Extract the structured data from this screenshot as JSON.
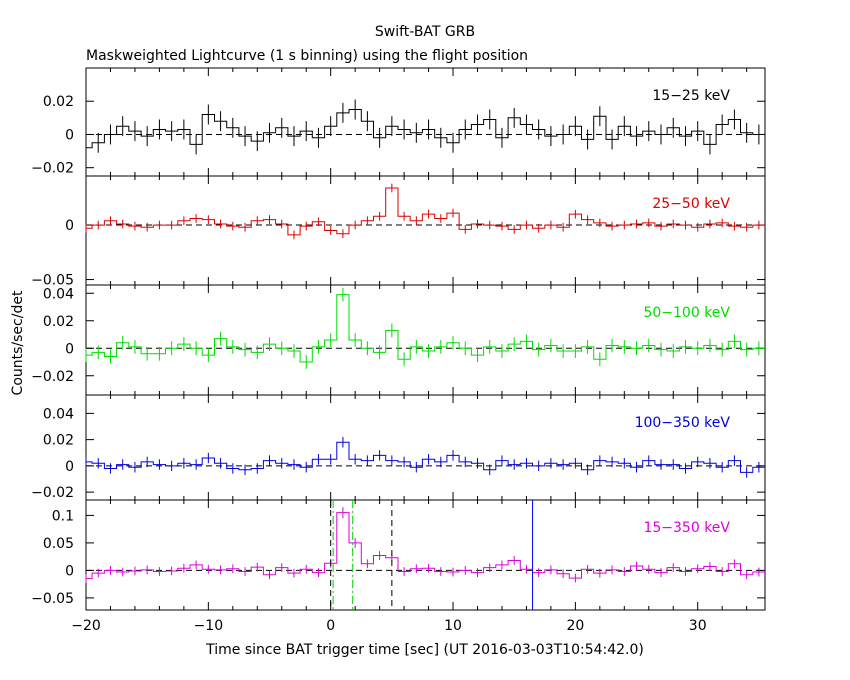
{
  "chart_data": {
    "type": "line",
    "title": "Swift-BAT GRB",
    "subtitle": "Maskweighted Lightcurve (1 s binning) using the flight position",
    "xlabel": "Time since BAT trigger time [sec] (UT 2016-03-03T10:54:42.0)",
    "ylabel": "Counts/sec/det",
    "xlim": [
      -20,
      35.5
    ],
    "x_ticks": [
      "−20",
      "−10",
      "0",
      "10",
      "20",
      "30"
    ],
    "bins": [
      -20,
      -19,
      -18,
      -17,
      -16,
      -15,
      -14,
      -13,
      -12,
      -11,
      -10,
      -9,
      -8,
      -7,
      -6,
      -5,
      -4,
      -3,
      -2,
      -1,
      0,
      1,
      2,
      3,
      4,
      5,
      6,
      7,
      8,
      9,
      10,
      11,
      12,
      13,
      14,
      15,
      16,
      17,
      18,
      19,
      20,
      21,
      22,
      23,
      24,
      25,
      26,
      27,
      28,
      29,
      30,
      31,
      32,
      33,
      34,
      35
    ],
    "vertical_lines": [
      {
        "x": 0,
        "style": "dashed",
        "color": "#000000"
      },
      {
        "x": 0.2,
        "style": "dashdot",
        "color": "#00cc00"
      },
      {
        "x": 1.8,
        "style": "dashdot",
        "color": "#00cc00"
      },
      {
        "x": 5.0,
        "style": "dashed",
        "color": "#000000"
      },
      {
        "x": 16.5,
        "style": "solid",
        "color": "#0000ff"
      }
    ],
    "panels": [
      {
        "name": "15-25 keV",
        "label": "15−25 keV",
        "color": "#000000",
        "ylim": [
          -0.025,
          0.04
        ],
        "y_ticks": [
          -0.02,
          0,
          0.02
        ],
        "y_tick_labels": [
          "−0.02",
          "0",
          "0.02"
        ],
        "values": [
          -0.008,
          -0.005,
          0,
          0.005,
          0.002,
          -0.001,
          0.003,
          0.002,
          0.003,
          -0.006,
          0.012,
          0.008,
          0.004,
          -0.001,
          -0.004,
          0.001,
          0.004,
          -0.001,
          0.002,
          -0.002,
          0.005,
          0.013,
          0.015,
          0.008,
          -0.002,
          0.005,
          0.003,
          0.001,
          0.003,
          -0.002,
          -0.005,
          0.003,
          0.006,
          0.009,
          -0.002,
          0.01,
          0.006,
          0.003,
          -0.001,
          0,
          0.005,
          -0.003,
          0.011,
          -0.003,
          0.005,
          -0.001,
          0.002,
          0,
          0.004,
          -0.001,
          0.002,
          -0.006,
          0.006,
          0.009,
          0.001,
          0
        ],
        "errors": [
          0.006,
          0.006,
          0.006,
          0.006,
          0.006,
          0.006,
          0.006,
          0.006,
          0.006,
          0.006,
          0.006,
          0.006,
          0.006,
          0.006,
          0.006,
          0.006,
          0.006,
          0.006,
          0.006,
          0.006,
          0.006,
          0.006,
          0.006,
          0.006,
          0.006,
          0.006,
          0.006,
          0.006,
          0.006,
          0.006,
          0.006,
          0.006,
          0.006,
          0.006,
          0.006,
          0.006,
          0.006,
          0.006,
          0.006,
          0.006,
          0.006,
          0.006,
          0.006,
          0.006,
          0.006,
          0.006,
          0.006,
          0.006,
          0.006,
          0.006,
          0.006,
          0.006,
          0.006,
          0.006,
          0.006,
          0.006
        ]
      },
      {
        "name": "25-50 keV",
        "label": "25−50 keV",
        "color": "#dd0000",
        "ylim": [
          -0.055,
          0.045
        ],
        "y_ticks": [
          -0.05,
          0
        ],
        "y_tick_labels": [
          "−0.05",
          "0"
        ],
        "values": [
          -0.003,
          0,
          0.004,
          0.001,
          -0.001,
          -0.002,
          0,
          0,
          0.004,
          0.006,
          0.005,
          0.001,
          -0.001,
          -0.002,
          0.004,
          0.005,
          0.001,
          -0.009,
          -0.001,
          0.003,
          -0.005,
          -0.008,
          0,
          0.004,
          0.008,
          0.034,
          0.008,
          0.004,
          0.01,
          0.006,
          0.011,
          -0.004,
          0.001,
          0,
          -0.001,
          -0.004,
          0,
          -0.003,
          0,
          -0.002,
          0.01,
          0.005,
          0.002,
          -0.001,
          0,
          0.001,
          0.002,
          -0.001,
          0.001,
          0,
          -0.002,
          0.001,
          0.002,
          -0.001,
          -0.002,
          0
        ],
        "errors": [
          0.004,
          0.004,
          0.004,
          0.004,
          0.004,
          0.004,
          0.004,
          0.004,
          0.004,
          0.004,
          0.004,
          0.004,
          0.004,
          0.004,
          0.004,
          0.004,
          0.004,
          0.004,
          0.004,
          0.004,
          0.004,
          0.004,
          0.004,
          0.004,
          0.004,
          0.004,
          0.004,
          0.004,
          0.004,
          0.004,
          0.004,
          0.004,
          0.004,
          0.004,
          0.004,
          0.004,
          0.004,
          0.004,
          0.004,
          0.004,
          0.004,
          0.004,
          0.004,
          0.004,
          0.004,
          0.004,
          0.004,
          0.004,
          0.004,
          0.004,
          0.004,
          0.004,
          0.004,
          0.004,
          0.004,
          0.004
        ]
      },
      {
        "name": "50-100 keV",
        "label": "50−100 keV",
        "color": "#00dd00",
        "ylim": [
          -0.034,
          0.046
        ],
        "y_ticks": [
          -0.02,
          0,
          0.02,
          0.04
        ],
        "y_tick_labels": [
          "−0.02",
          "0",
          "0.02",
          "0.04"
        ],
        "values": [
          -0.005,
          -0.003,
          -0.006,
          0.004,
          0.001,
          -0.004,
          -0.004,
          0,
          0.003,
          0,
          -0.005,
          0.007,
          0.001,
          -0.001,
          -0.003,
          0.003,
          0,
          -0.002,
          -0.01,
          0.001,
          0.006,
          0.039,
          0.006,
          0,
          -0.003,
          0.013,
          -0.008,
          0.001,
          -0.002,
          0.001,
          0.004,
          0,
          -0.005,
          0.001,
          -0.002,
          0.003,
          0.005,
          -0.001,
          0.002,
          -0.002,
          -0.002,
          0.001,
          -0.008,
          0.002,
          0.001,
          0,
          0.002,
          -0.001,
          -0.002,
          0.001,
          0,
          0.002,
          -0.001,
          0.005,
          -0.001,
          0
        ],
        "errors": [
          0.005,
          0.005,
          0.005,
          0.005,
          0.005,
          0.005,
          0.005,
          0.005,
          0.005,
          0.005,
          0.005,
          0.005,
          0.005,
          0.005,
          0.005,
          0.005,
          0.005,
          0.005,
          0.005,
          0.005,
          0.005,
          0.005,
          0.005,
          0.005,
          0.005,
          0.005,
          0.005,
          0.005,
          0.005,
          0.005,
          0.005,
          0.005,
          0.005,
          0.005,
          0.005,
          0.005,
          0.005,
          0.005,
          0.005,
          0.005,
          0.005,
          0.005,
          0.005,
          0.005,
          0.005,
          0.005,
          0.005,
          0.005,
          0.005,
          0.005,
          0.005,
          0.005,
          0.005,
          0.005,
          0.005,
          0.005
        ]
      },
      {
        "name": "100-350 keV",
        "label": "100−350 keV",
        "color": "#0000dd",
        "ylim": [
          -0.026,
          0.054
        ],
        "y_ticks": [
          -0.02,
          0,
          0.02,
          0.04
        ],
        "y_tick_labels": [
          "−0.02",
          "0",
          "0.02",
          "0.04"
        ],
        "values": [
          0.003,
          0.002,
          -0.002,
          0.001,
          -0.001,
          0.003,
          0.001,
          0,
          0.002,
          0.001,
          0.006,
          0.002,
          -0.002,
          -0.003,
          -0.002,
          0.004,
          0.002,
          0.001,
          -0.001,
          0.005,
          0.005,
          0.018,
          0.005,
          0.004,
          0.008,
          0.004,
          0.003,
          -0.001,
          0.005,
          0.003,
          0.008,
          0.003,
          0.002,
          -0.003,
          0.004,
          0.001,
          0.002,
          0,
          0.002,
          0.001,
          0.002,
          -0.003,
          0.004,
          0.003,
          0.002,
          -0.001,
          0.004,
          0.001,
          0.001,
          -0.002,
          0.003,
          0.002,
          -0.001,
          0.004,
          -0.005,
          -0.001
        ],
        "errors": [
          0.004,
          0.004,
          0.004,
          0.004,
          0.004,
          0.004,
          0.004,
          0.004,
          0.004,
          0.004,
          0.004,
          0.004,
          0.004,
          0.004,
          0.004,
          0.004,
          0.004,
          0.004,
          0.004,
          0.004,
          0.004,
          0.004,
          0.004,
          0.004,
          0.004,
          0.004,
          0.004,
          0.004,
          0.004,
          0.004,
          0.004,
          0.004,
          0.004,
          0.004,
          0.004,
          0.004,
          0.004,
          0.004,
          0.004,
          0.004,
          0.004,
          0.004,
          0.004,
          0.004,
          0.004,
          0.004,
          0.004,
          0.004,
          0.004,
          0.004,
          0.004,
          0.004,
          0.004,
          0.004,
          0.004,
          0.004
        ]
      },
      {
        "name": "15-350 keV",
        "label": "15−350 keV",
        "color": "#dd00dd",
        "ylim": [
          -0.072,
          0.128
        ],
        "y_ticks": [
          -0.05,
          0,
          0.05,
          0.1
        ],
        "y_tick_labels": [
          "−0.05",
          "0",
          "0.05",
          "0.1"
        ],
        "values": [
          -0.015,
          -0.005,
          0,
          -0.003,
          -0.001,
          0.001,
          -0.002,
          -0.001,
          0.004,
          0.01,
          0.002,
          0.001,
          0.003,
          -0.002,
          0.006,
          -0.008,
          0.005,
          -0.005,
          0.002,
          -0.004,
          0.013,
          0.105,
          0.05,
          0.012,
          0.027,
          0.023,
          -0.002,
          0.003,
          0.004,
          -0.002,
          -0.003,
          0,
          -0.004,
          0.005,
          0.01,
          0.018,
          0.002,
          -0.004,
          0.001,
          -0.006,
          -0.014,
          0.002,
          -0.005,
          0.001,
          -0.002,
          0.008,
          0.002,
          -0.004,
          0.005,
          -0.002,
          0.003,
          0.007,
          -0.002,
          0.012,
          -0.008,
          -0.003
        ],
        "errors": [
          0.008,
          0.008,
          0.008,
          0.008,
          0.008,
          0.008,
          0.008,
          0.008,
          0.008,
          0.008,
          0.008,
          0.008,
          0.008,
          0.008,
          0.008,
          0.008,
          0.008,
          0.008,
          0.008,
          0.008,
          0.008,
          0.01,
          0.009,
          0.008,
          0.008,
          0.008,
          0.008,
          0.008,
          0.008,
          0.008,
          0.008,
          0.008,
          0.008,
          0.008,
          0.008,
          0.008,
          0.008,
          0.008,
          0.008,
          0.008,
          0.008,
          0.008,
          0.008,
          0.008,
          0.008,
          0.008,
          0.008,
          0.008,
          0.008,
          0.008,
          0.008,
          0.008,
          0.008,
          0.008,
          0.008,
          0.008
        ]
      }
    ]
  }
}
